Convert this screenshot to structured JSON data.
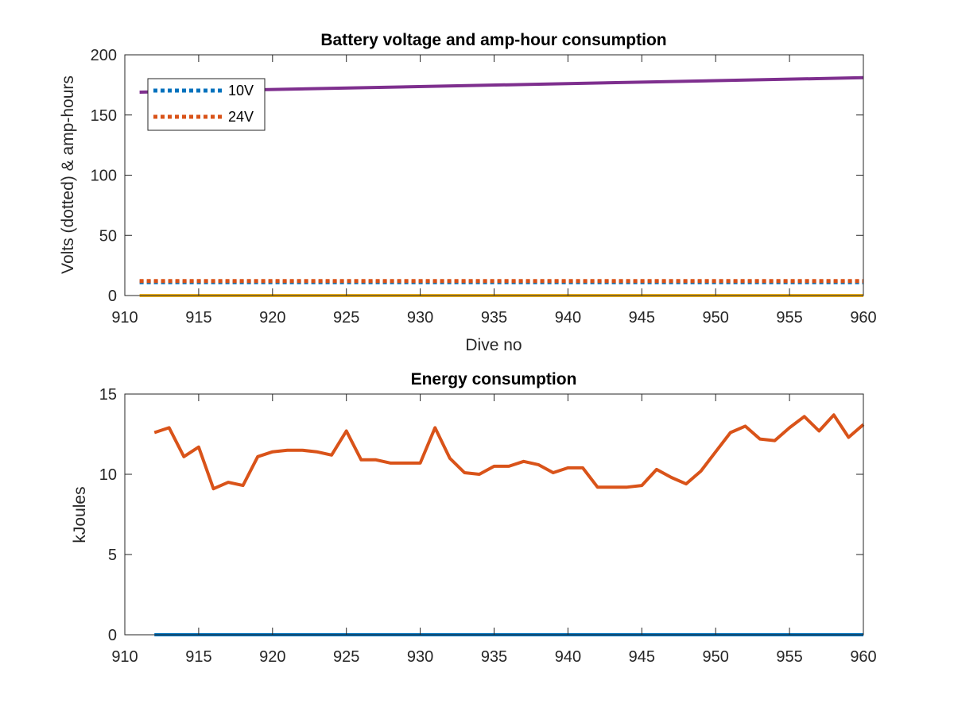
{
  "chart_data": [
    {
      "type": "line",
      "title": "Battery voltage and amp-hour consumption",
      "xlabel": "Dive no",
      "ylabel": "Volts (dotted) & amp-hours",
      "xlim": [
        910,
        960
      ],
      "ylim": [
        0,
        200
      ],
      "xticks": [
        910,
        915,
        920,
        925,
        930,
        935,
        940,
        945,
        950,
        955,
        960
      ],
      "yticks": [
        0,
        50,
        100,
        150,
        200
      ],
      "legend_placement": "top-left",
      "series": [
        {
          "name": "10V",
          "style": "dotted",
          "color": "#0072BD",
          "x": [
            911,
            960
          ],
          "y": [
            11,
            11
          ]
        },
        {
          "name": "24V",
          "style": "dotted",
          "color": "#D95319",
          "x": [
            911,
            960
          ],
          "y": [
            12,
            12
          ]
        },
        {
          "style": "solid",
          "color": "#EDB120",
          "x": [
            911,
            960
          ],
          "y": [
            0,
            0
          ]
        },
        {
          "style": "solid",
          "color": "#7E2F8E",
          "x": [
            911,
            960
          ],
          "y": [
            169,
            181
          ]
        }
      ]
    },
    {
      "type": "line",
      "title": "Energy consumption",
      "xlabel": "",
      "ylabel": "kJoules",
      "xlim": [
        910,
        960
      ],
      "ylim": [
        0,
        15
      ],
      "xticks": [
        910,
        915,
        920,
        925,
        930,
        935,
        940,
        945,
        950,
        955,
        960
      ],
      "yticks": [
        0,
        5,
        10,
        15
      ],
      "series": [
        {
          "style": "solid",
          "color": "#0072BD",
          "x": [
            912,
            960
          ],
          "y": [
            0,
            0
          ]
        },
        {
          "style": "solid",
          "color": "#D95319",
          "x": [
            912,
            913,
            914,
            915,
            916,
            917,
            918,
            919,
            920,
            921,
            922,
            923,
            924,
            925,
            926,
            927,
            928,
            929,
            930,
            931,
            932,
            933,
            934,
            935,
            936,
            937,
            938,
            939,
            940,
            941,
            942,
            943,
            944,
            945,
            946,
            947,
            948,
            949,
            950,
            951,
            952,
            953,
            954,
            955,
            956,
            957,
            958,
            959,
            960
          ],
          "y": [
            12.6,
            12.9,
            11.1,
            11.7,
            9.1,
            9.5,
            9.3,
            11.1,
            11.4,
            11.5,
            11.5,
            11.4,
            11.2,
            12.7,
            10.9,
            10.9,
            10.7,
            10.7,
            10.7,
            12.9,
            11.0,
            10.1,
            10.0,
            10.5,
            10.5,
            10.8,
            10.6,
            10.1,
            10.4,
            10.4,
            9.2,
            9.2,
            9.2,
            9.3,
            10.3,
            9.8,
            9.4,
            10.2,
            11.4,
            12.6,
            13.0,
            12.2,
            12.1,
            12.9,
            13.6,
            12.7,
            13.7,
            12.3,
            13.1
          ]
        }
      ]
    }
  ]
}
